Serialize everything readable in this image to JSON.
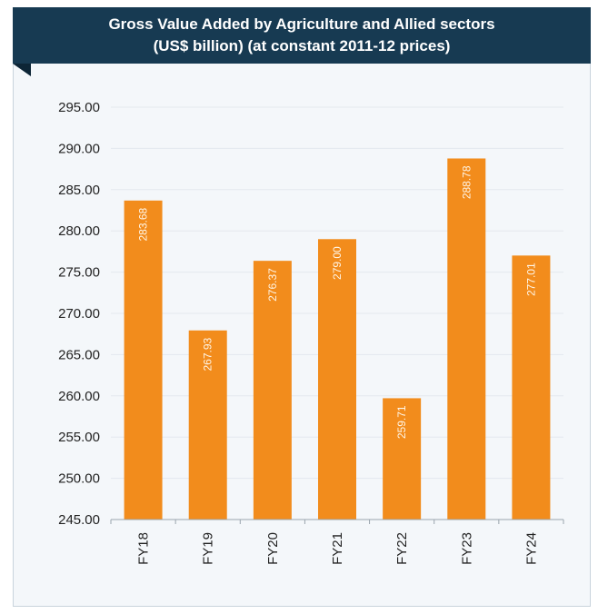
{
  "header": {
    "title_line1": "Gross Value Added by Agriculture and Allied sectors",
    "title_line2": "(US$ billion) (at constant 2011-12 prices)"
  },
  "colors": {
    "bar": "#f28c1c",
    "banner": "#173a52",
    "grid": "#e3e8ee"
  },
  "chart_data": {
    "type": "bar",
    "title": "Gross Value Added by Agriculture and Allied sectors (US$ billion) (at constant 2011-12 prices)",
    "xlabel": "",
    "ylabel": "",
    "categories": [
      "FY18",
      "FY19",
      "FY20",
      "FY21",
      "FY22",
      "FY23",
      "FY24"
    ],
    "values": [
      283.68,
      267.93,
      276.37,
      279.0,
      259.71,
      288.78,
      277.01
    ],
    "data_labels": [
      "283.68",
      "267.93",
      "276.37",
      "279.00",
      "259.71",
      "288.78",
      "277.01"
    ],
    "ylim": [
      245,
      295
    ],
    "yticks": [
      "245.00",
      "250.00",
      "255.00",
      "260.00",
      "265.00",
      "270.00",
      "275.00",
      "280.00",
      "285.00",
      "290.00",
      "295.00"
    ],
    "grid": true,
    "legend": "none"
  }
}
